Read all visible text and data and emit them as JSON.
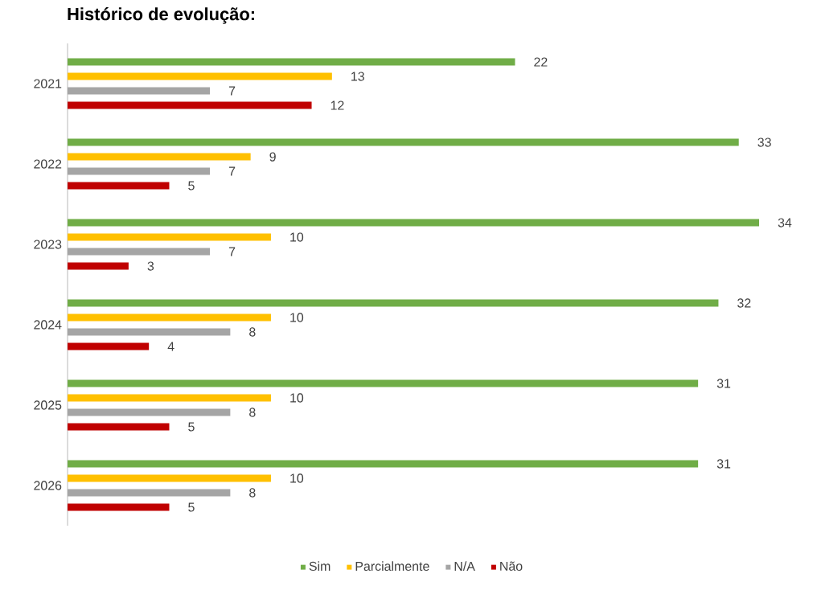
{
  "chart_data": {
    "type": "bar",
    "orientation": "horizontal",
    "title": "Histórico de evolução:",
    "categories": [
      "2021",
      "2022",
      "2023",
      "2024",
      "2025",
      "2026"
    ],
    "series": [
      {
        "name": "Sim",
        "color": "#70ad47",
        "values": [
          22,
          33,
          34,
          32,
          31,
          31
        ]
      },
      {
        "name": "Parcialmente",
        "color": "#ffc000",
        "values": [
          13,
          9,
          10,
          10,
          10,
          10
        ]
      },
      {
        "name": "N/A",
        "color": "#a5a5a5",
        "values": [
          7,
          7,
          7,
          8,
          8,
          8
        ]
      },
      {
        "name": "Não",
        "color": "#c00000",
        "values": [
          12,
          5,
          3,
          4,
          5,
          5
        ]
      }
    ],
    "data_labels": true,
    "legend": "bottom"
  }
}
